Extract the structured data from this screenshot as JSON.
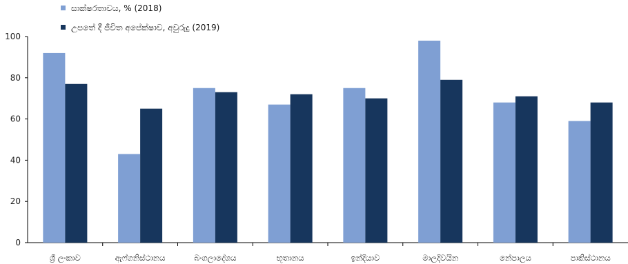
{
  "chart_data": {
    "type": "bar",
    "title": "",
    "xlabel": "",
    "ylabel": "",
    "ylim": [
      0,
      100
    ],
    "yticks": [
      0,
      20,
      40,
      60,
      80,
      100
    ],
    "grid": false,
    "legend_position": "top-left",
    "categories": [
      "ශ්‍රී ලංකාව",
      "ඇෆ්ගනිස්ථානය",
      "බංගලාදේශය",
      "භූතානය",
      "ඉන්දියාව",
      "මාලදිවයින",
      "නේපාලය",
      "පාකිස්ථානය"
    ],
    "series": [
      {
        "name": "සාක්ෂරතාවය, % (2018)",
        "color": "#7f9fd3",
        "values": [
          92,
          43,
          75,
          67,
          75,
          98,
          68,
          59
        ]
      },
      {
        "name": "උපතේ දී ජීවිත අපේක්ෂාව, අවුරුදු (2019)",
        "color": "#17365d",
        "values": [
          77,
          65,
          73,
          72,
          70,
          79,
          71,
          68
        ]
      }
    ]
  }
}
